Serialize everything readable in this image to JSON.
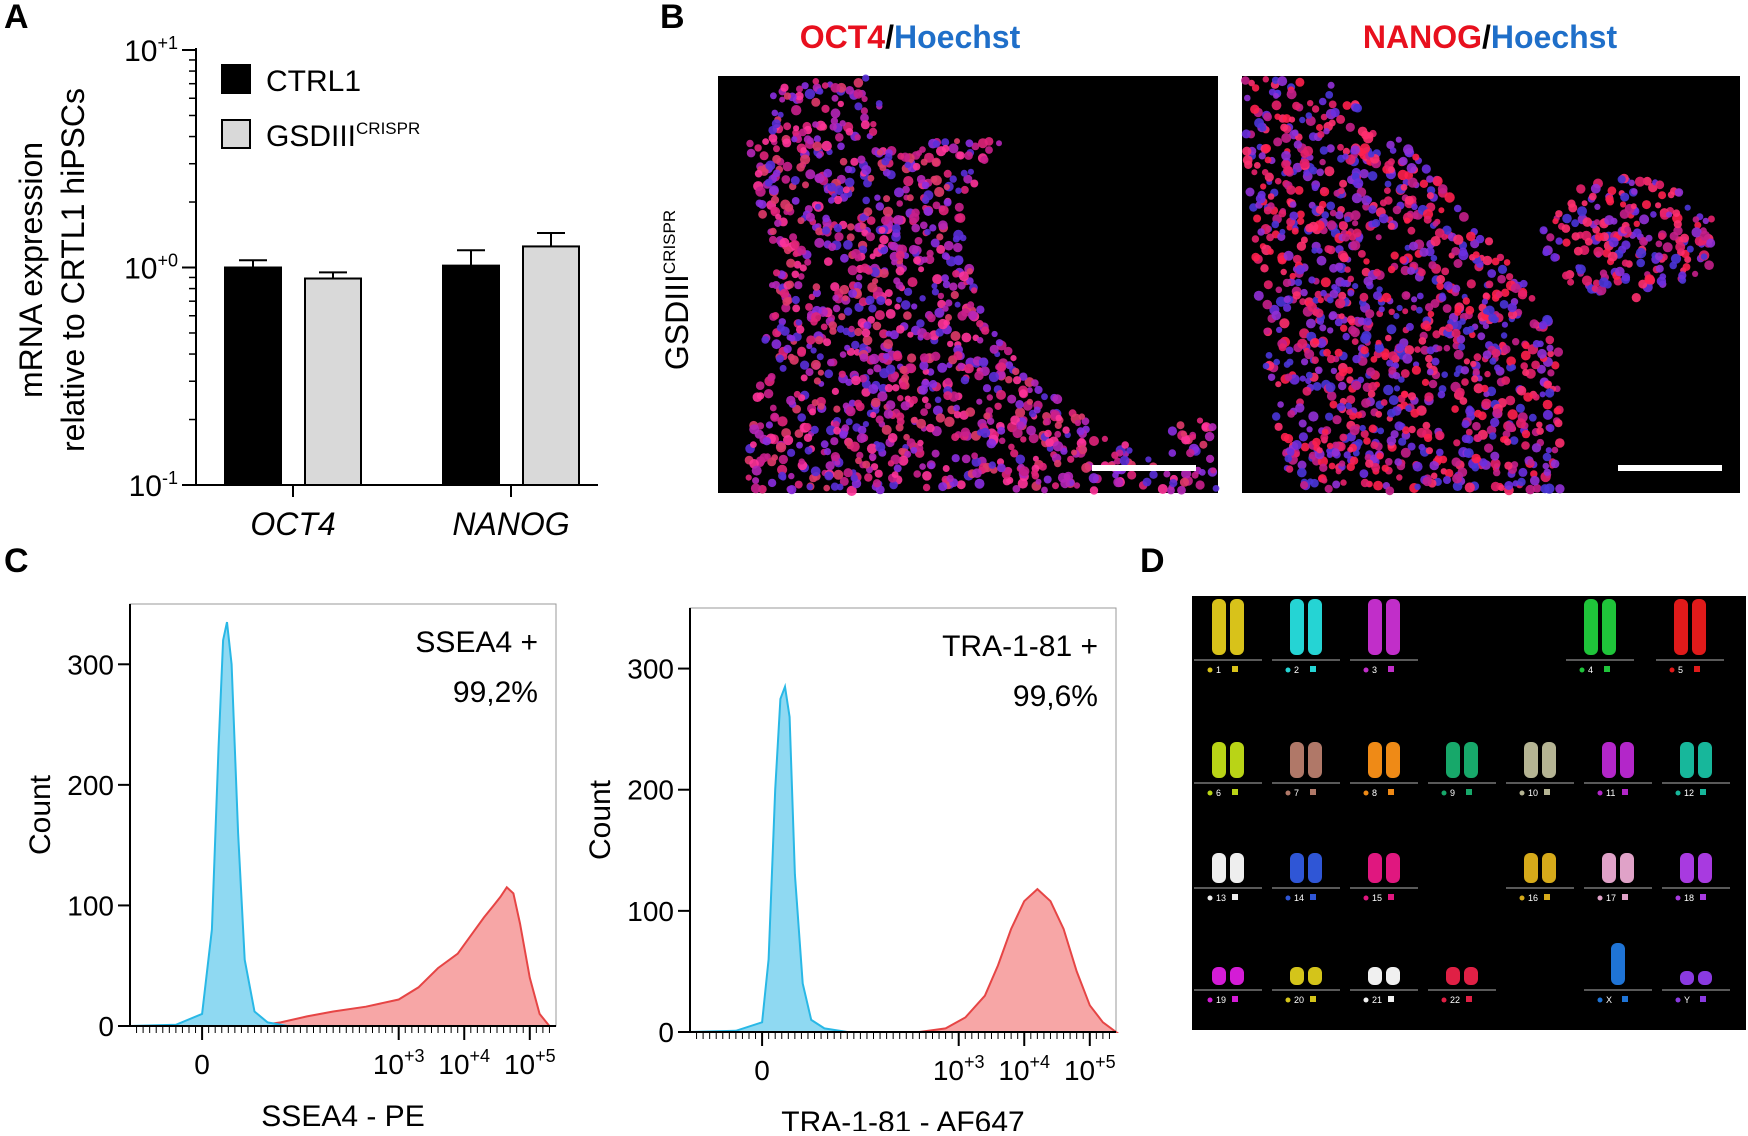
{
  "colors": {
    "ctrl1": "#000000",
    "gsdiii": "#d9d9d9",
    "oct4_red": "#e8101e",
    "hoechst_blue": "#1f6fc9",
    "neg_fill": "#8fd9f2",
    "neg_line": "#29b8e6",
    "pos_fill": "#f7a6a6",
    "pos_line": "#e64545"
  },
  "panels": {
    "a": "A",
    "b": "B",
    "c": "C",
    "d": "D"
  },
  "chart_data": [
    {
      "type": "bar",
      "panel": "A",
      "yscale": "log",
      "ylabel_line1": "mRNA expression",
      "ylabel_line2": "relative to CRTL1 hiPSCs",
      "ylim": [
        0.1,
        10
      ],
      "yticks": [
        {
          "value": 10,
          "base": "10",
          "exp": "+1"
        },
        {
          "value": 1,
          "base": "10",
          "exp": "+0"
        },
        {
          "value": 0.1,
          "base": "10",
          "exp": "-1"
        }
      ],
      "categories": [
        "OCT4",
        "NANOG"
      ],
      "series": [
        {
          "name": "CTRL1",
          "name_sup": "",
          "values": [
            1.0,
            1.02
          ],
          "errors": [
            0.08,
            0.18
          ]
        },
        {
          "name": "GSDIII",
          "name_sup": "CRISPR",
          "values": [
            0.89,
            1.25
          ],
          "errors": [
            0.06,
            0.19
          ]
        }
      ]
    },
    {
      "type": "area",
      "panel": "C-left",
      "xlabel": "SSEA4 - PE",
      "ylabel": "Count",
      "ylim": [
        0,
        350
      ],
      "yticks": [
        "0",
        "100",
        "200",
        "300"
      ],
      "xticks": [
        {
          "pos": 0,
          "base": "0",
          "exp": ""
        },
        {
          "pos": 3,
          "base": "10",
          "exp": "+3"
        },
        {
          "pos": 4,
          "base": "10",
          "exp": "+4"
        },
        {
          "pos": 5,
          "base": "10",
          "exp": "+5"
        }
      ],
      "annotation_line1": "SSEA4 +",
      "annotation_line2": "99,2%",
      "negative": {
        "x": [
          -1.1,
          -0.4,
          0,
          0.15,
          0.25,
          0.32,
          0.38,
          0.45,
          0.55,
          0.65,
          0.8,
          1.0,
          1.3,
          2.0,
          3.5
        ],
        "y": [
          0,
          1,
          10,
          80,
          230,
          320,
          335,
          300,
          160,
          55,
          12,
          3,
          0,
          0,
          0
        ]
      },
      "positive": {
        "x": [
          -1.1,
          0.8,
          1.2,
          1.6,
          2.0,
          2.5,
          3.0,
          3.3,
          3.6,
          3.9,
          4.1,
          4.3,
          4.45,
          4.55,
          4.65,
          4.75,
          4.85,
          5.0,
          5.15,
          5.3
        ],
        "y": [
          0,
          0,
          3,
          8,
          12,
          16,
          22,
          32,
          48,
          60,
          75,
          90,
          100,
          107,
          115,
          110,
          85,
          40,
          10,
          0
        ]
      }
    },
    {
      "type": "area",
      "panel": "C-right",
      "xlabel": "TRA-1-81 - AF647",
      "ylabel": "Count",
      "ylim": [
        0,
        350
      ],
      "yticks": [
        "0",
        "100",
        "200",
        "300"
      ],
      "xticks": [
        {
          "pos": 0,
          "base": "0",
          "exp": ""
        },
        {
          "pos": 3,
          "base": "10",
          "exp": "+3"
        },
        {
          "pos": 4,
          "base": "10",
          "exp": "+4"
        },
        {
          "pos": 5,
          "base": "10",
          "exp": "+5"
        }
      ],
      "annotation_line1": "TRA-1-81 +",
      "annotation_line2": "99,6%",
      "negative": {
        "x": [
          -1.1,
          -0.4,
          0,
          0.1,
          0.2,
          0.28,
          0.35,
          0.42,
          0.5,
          0.62,
          0.75,
          0.95,
          1.3,
          2.0,
          3.5
        ],
        "y": [
          0,
          1,
          8,
          60,
          200,
          275,
          285,
          260,
          130,
          40,
          10,
          3,
          0,
          0,
          0
        ]
      },
      "positive": {
        "x": [
          -1.1,
          2.4,
          2.8,
          3.1,
          3.4,
          3.6,
          3.8,
          4.0,
          4.2,
          4.4,
          4.6,
          4.8,
          5.0,
          5.2,
          5.4
        ],
        "y": [
          0,
          0,
          3,
          12,
          30,
          55,
          85,
          108,
          118,
          108,
          85,
          50,
          22,
          8,
          0
        ]
      }
    }
  ],
  "micrographs": {
    "row_label_base": "GSDIII",
    "row_label_sup": "CRISPR",
    "left_title_marker": "OCT4",
    "left_title_stain": "Hoechst",
    "right_title_marker": "NANOG",
    "right_title_stain": "Hoechst",
    "separator": "/"
  },
  "karyotype": {
    "chromosomes": [
      {
        "label": "1",
        "color": "#d8c21a"
      },
      {
        "label": "2",
        "color": "#25d4d4"
      },
      {
        "label": "3",
        "color": "#c12ec9"
      },
      {
        "label": "4",
        "color": "#1fc43a"
      },
      {
        "label": "5",
        "color": "#e01a1a"
      },
      {
        "label": "6",
        "color": "#b9d416"
      },
      {
        "label": "7",
        "color": "#b07868"
      },
      {
        "label": "8",
        "color": "#ef8a16"
      },
      {
        "label": "9",
        "color": "#17a86a"
      },
      {
        "label": "10",
        "color": "#b5b493"
      },
      {
        "label": "11",
        "color": "#b326c9"
      },
      {
        "label": "12",
        "color": "#17b79b"
      },
      {
        "label": "13",
        "color": "#eeeeee"
      },
      {
        "label": "14",
        "color": "#2f56d6"
      },
      {
        "label": "15",
        "color": "#e0177f"
      },
      {
        "label": "16",
        "color": "#d6aa1a"
      },
      {
        "label": "17",
        "color": "#e0a2c8"
      },
      {
        "label": "18",
        "color": "#a83ae0"
      },
      {
        "label": "19",
        "color": "#d41cd6"
      },
      {
        "label": "20",
        "color": "#d4c41a"
      },
      {
        "label": "21",
        "color": "#f0f0f0"
      },
      {
        "label": "22",
        "color": "#e02045"
      },
      {
        "label": "X",
        "color": "#1f74d6"
      },
      {
        "label": "Y",
        "color": "#8a3ae0"
      }
    ]
  }
}
